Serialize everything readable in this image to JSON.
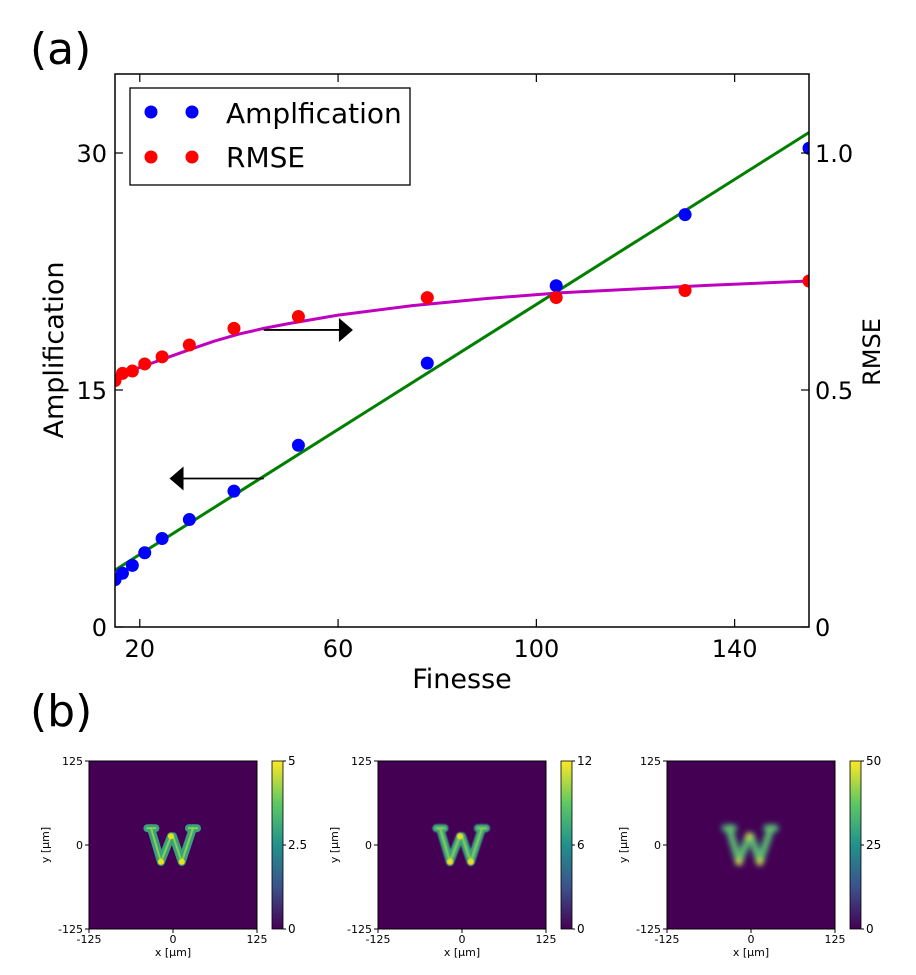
{
  "panel_a_label": "(a)",
  "panel_b_label": "(b)",
  "colors": {
    "amplification": "#0000ff",
    "rmse": "#ff0000",
    "amp_fit": "#007f00",
    "rmse_fit": "#bf00bf",
    "heatmap_low": "#440154",
    "heatmap_high": "#fde725"
  },
  "chart_data": [
    {
      "type": "scatter",
      "panel": "(a)",
      "xlabel": "Finesse",
      "ylabel_left": "Amplification",
      "ylabel_right": "RMSE",
      "xlim": [
        15,
        155
      ],
      "ylim_left": [
        0,
        35
      ],
      "ylim_right": [
        0,
        1.1667
      ],
      "x_ticks": [
        20,
        60,
        100,
        140
      ],
      "y_left_ticks": [
        0,
        15,
        30
      ],
      "y_right_ticks": [
        0,
        0.5,
        1.0
      ],
      "x_tick_labels": [
        "20",
        "60",
        "100",
        "140"
      ],
      "y_left_tick_labels": [
        "0",
        "15",
        "30"
      ],
      "y_right_tick_labels": [
        "0",
        "0.5",
        "1.0"
      ],
      "legend": {
        "position": "top-left",
        "entries": [
          {
            "label": "Amplfication",
            "color": "#0000ff"
          },
          {
            "label": "RMSE",
            "color": "#ff0000"
          }
        ]
      },
      "series": [
        {
          "name": "Amplfication",
          "axis": "left",
          "x": [
            15,
            16.5,
            18.5,
            21,
            24.5,
            30,
            39,
            52,
            78,
            104,
            130,
            155
          ],
          "y": [
            3.0,
            3.4,
            3.9,
            4.7,
            5.6,
            6.8,
            8.6,
            11.5,
            16.7,
            21.6,
            26.1,
            30.3
          ]
        },
        {
          "name": "RMSE",
          "axis": "right",
          "x": [
            15,
            16.5,
            18.5,
            21,
            24.5,
            30,
            39,
            52,
            78,
            104,
            130,
            155
          ],
          "y": [
            0.52,
            0.535,
            0.54,
            0.555,
            0.57,
            0.595,
            0.63,
            0.655,
            0.695,
            0.695,
            0.71,
            0.73
          ]
        }
      ],
      "fits": [
        {
          "name": "Amplification fit",
          "axis": "left",
          "x": [
            15,
            155
          ],
          "y": [
            3.6,
            31.3
          ]
        },
        {
          "name": "RMSE fit",
          "axis": "right",
          "x": [
            15,
            18,
            22,
            26,
            30,
            35,
            40,
            45,
            50,
            60,
            75,
            90,
            105,
            120,
            135,
            155
          ],
          "y": [
            0.525,
            0.54,
            0.555,
            0.57,
            0.585,
            0.603,
            0.618,
            0.63,
            0.64,
            0.658,
            0.678,
            0.693,
            0.705,
            0.713,
            0.721,
            0.73
          ]
        }
      ],
      "annotations": [
        {
          "type": "arrow",
          "direction": "right",
          "meaning": "RMSE curve reads against right axis",
          "x_from": 45,
          "x_to": 63,
          "y_left": 18.8
        },
        {
          "type": "arrow",
          "direction": "left",
          "meaning": "Amplification line reads against left axis",
          "x_from": 45,
          "x_to": 26,
          "y_left": 9.4
        }
      ]
    },
    {
      "type": "heatmap",
      "panel": "(b) left",
      "xlabel": "x [μm]",
      "ylabel": "y [μm]",
      "xlim": [
        -125,
        125
      ],
      "ylim": [
        -125,
        125
      ],
      "x_tick_labels": [
        "-125",
        "0",
        "125"
      ],
      "y_tick_labels": [
        "125",
        "0",
        "-125"
      ],
      "content": "W",
      "blur": 0.3,
      "colorbar": {
        "min": 0,
        "max": 5,
        "tick_labels": [
          "5",
          "2.5",
          "0"
        ]
      }
    },
    {
      "type": "heatmap",
      "panel": "(b) middle",
      "xlabel": "x [μm]",
      "ylabel": "y [μm]",
      "xlim": [
        -125,
        125
      ],
      "ylim": [
        -125,
        125
      ],
      "x_tick_labels": [
        "-125",
        "0",
        "125"
      ],
      "y_tick_labels": [
        "125",
        "0",
        "-125"
      ],
      "content": "W",
      "blur": 0.9,
      "colorbar": {
        "min": 0,
        "max": 12,
        "tick_labels": [
          "12",
          "6",
          "0"
        ]
      }
    },
    {
      "type": "heatmap",
      "panel": "(b) right",
      "xlabel": "x [μm]",
      "ylabel": "y [μm]",
      "xlim": [
        -125,
        125
      ],
      "ylim": [
        -125,
        125
      ],
      "x_tick_labels": [
        "-125",
        "0",
        "125"
      ],
      "y_tick_labels": [
        "125",
        "0",
        "-125"
      ],
      "content": "W",
      "blur": 2.6,
      "colorbar": {
        "min": 0,
        "max": 50,
        "tick_labels": [
          "50",
          "25",
          "0"
        ]
      }
    }
  ]
}
